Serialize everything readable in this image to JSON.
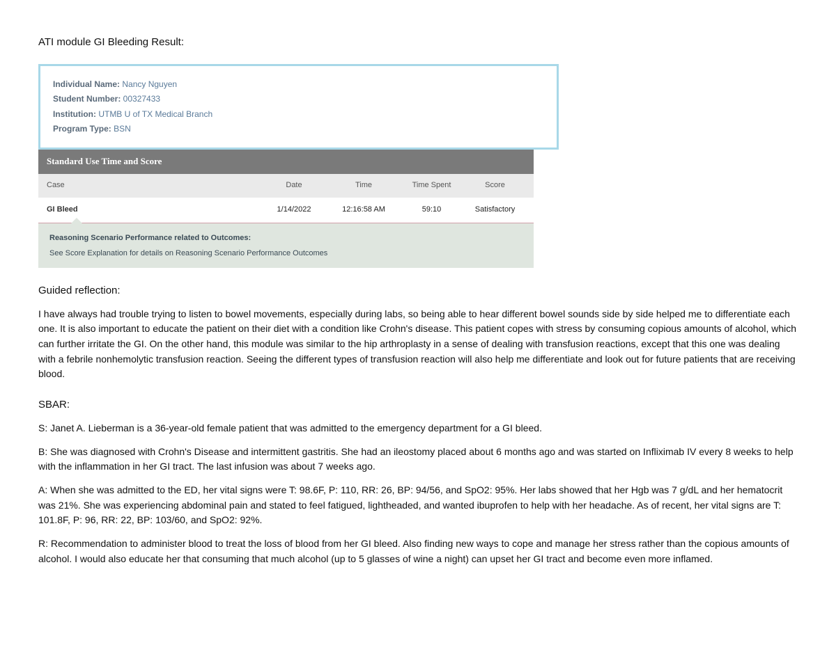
{
  "heading": "ATI module GI Bleeding Result:",
  "report": {
    "fields": [
      {
        "label": "Individual Name:",
        "value": " Nancy Nguyen"
      },
      {
        "label": "Student Number:",
        "value": " 00327433"
      },
      {
        "label": "Institution:",
        "value": " UTMB U of TX Medical Branch"
      },
      {
        "label": "Program Type:",
        "value": " BSN"
      }
    ]
  },
  "section_title": "Standard Use Time and Score",
  "table": {
    "headers": {
      "case": "Case",
      "date": "Date",
      "time": "Time",
      "spent": "Time Spent",
      "score": "Score"
    },
    "row": {
      "case": "GI Bleed",
      "date": "1/14/2022",
      "time": "12:16:58 AM",
      "spent": "59:10",
      "score": "Satisfactory"
    }
  },
  "outcome": {
    "line1": "Reasoning Scenario Performance related to Outcomes:",
    "line2": "See Score Explanation for details on Reasoning Scenario Performance Outcomes"
  },
  "reflection_heading": "Guided reflection:",
  "reflection_body": "I have always had trouble trying to listen to bowel movements, especially during labs, so being able to hear different bowel sounds side by side helped me to differentiate each one. It is also important to educate the patient on their diet with a condition like Crohn's disease. This patient copes with stress by consuming copious amounts of alcohol, which can further irritate the GI. On the other hand, this module was similar to the hip arthroplasty in a sense of dealing with transfusion reactions, except that this one was dealing with a febrile nonhemolytic transfusion reaction. Seeing the different types of transfusion reaction will also help me differentiate and look out for future patients that are receiving blood.",
  "sbar_heading": "SBAR:",
  "sbar": {
    "s": "S: Janet A. Lieberman is a 36-year-old female patient that was admitted to the emergency department for a GI bleed.",
    "b": "B: She was diagnosed with Crohn's Disease and intermittent gastritis. She had an ileostomy placed about 6 months ago and was started on Infliximab IV every 8 weeks to help with the inflammation in her GI tract. The last infusion was about 7 weeks ago.",
    "a": "A: When she was admitted to the ED, her vital signs were T: 98.6F, P: 110, RR: 26, BP: 94/56, and SpO2: 95%. Her labs showed that her Hgb was 7 g/dL and her hematocrit was 21%. She was experiencing abdominal pain and stated to feel fatigued, lightheaded, and wanted ibuprofen to help with her headache. As of recent, her vital signs are T: 101.8F, P: 96, RR: 22, BP: 103/60, and SpO2: 92%.",
    "r": "R:  Recommendation to administer blood to treat the loss of blood from her GI bleed. Also finding new ways to cope and manage her stress rather than the copious amounts of alcohol. I would also educate her that consuming that much alcohol (up to 5 glasses of wine a night) can upset her GI tract and become even more inflamed."
  }
}
